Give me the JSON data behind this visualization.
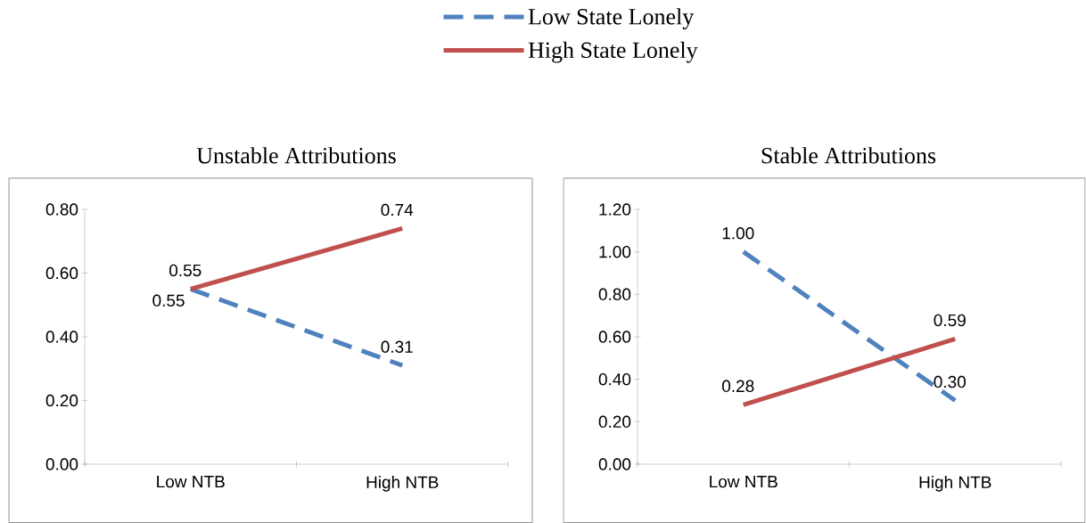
{
  "chart_data": [
    {
      "type": "line",
      "title": "Unstable Attributions",
      "categories": [
        "Low NTB",
        "High NTB"
      ],
      "legend": "top",
      "marker": "none",
      "ylim": [
        0,
        0.8
      ],
      "yticks": [
        {
          "value": 0,
          "label": "0.00"
        },
        {
          "value": 0.2,
          "label": "0.20"
        },
        {
          "value": 0.4,
          "label": "0.40"
        },
        {
          "value": 0.6,
          "label": "0.60"
        },
        {
          "value": 0.8,
          "label": "0.80"
        }
      ],
      "series": [
        {
          "name": "Low State Lonely",
          "color": "#4f81bd",
          "line_style": "dashed",
          "values": [
            0.55,
            0.31
          ],
          "value_labels": [
            "0.55",
            "0.31"
          ]
        },
        {
          "name": "High State Lonely",
          "color": "#c0504d",
          "line_style": "solid",
          "values": [
            0.55,
            0.74
          ],
          "value_labels": [
            "0.55",
            "0.74"
          ]
        }
      ]
    },
    {
      "type": "line",
      "title": "Stable Attributions",
      "categories": [
        "Low NTB",
        "High NTB"
      ],
      "marker": "none",
      "ylim": [
        0,
        1.2
      ],
      "yticks": [
        {
          "value": 0,
          "label": "0.00"
        },
        {
          "value": 0.2,
          "label": "0.20"
        },
        {
          "value": 0.4,
          "label": "0.40"
        },
        {
          "value": 0.6,
          "label": "0.60"
        },
        {
          "value": 0.8,
          "label": "0.80"
        },
        {
          "value": 1.0,
          "label": "1.00"
        },
        {
          "value": 1.2,
          "label": "1.20"
        }
      ],
      "series": [
        {
          "color": "#4f81bd",
          "line_style": "dashed",
          "values": [
            1.0,
            0.3
          ],
          "value_labels": [
            "1.00",
            "0.30"
          ]
        },
        {
          "color": "#c0504d",
          "line_style": "solid",
          "values": [
            0.28,
            0.59
          ],
          "value_labels": [
            "0.28",
            "0.59"
          ]
        }
      ]
    }
  ]
}
